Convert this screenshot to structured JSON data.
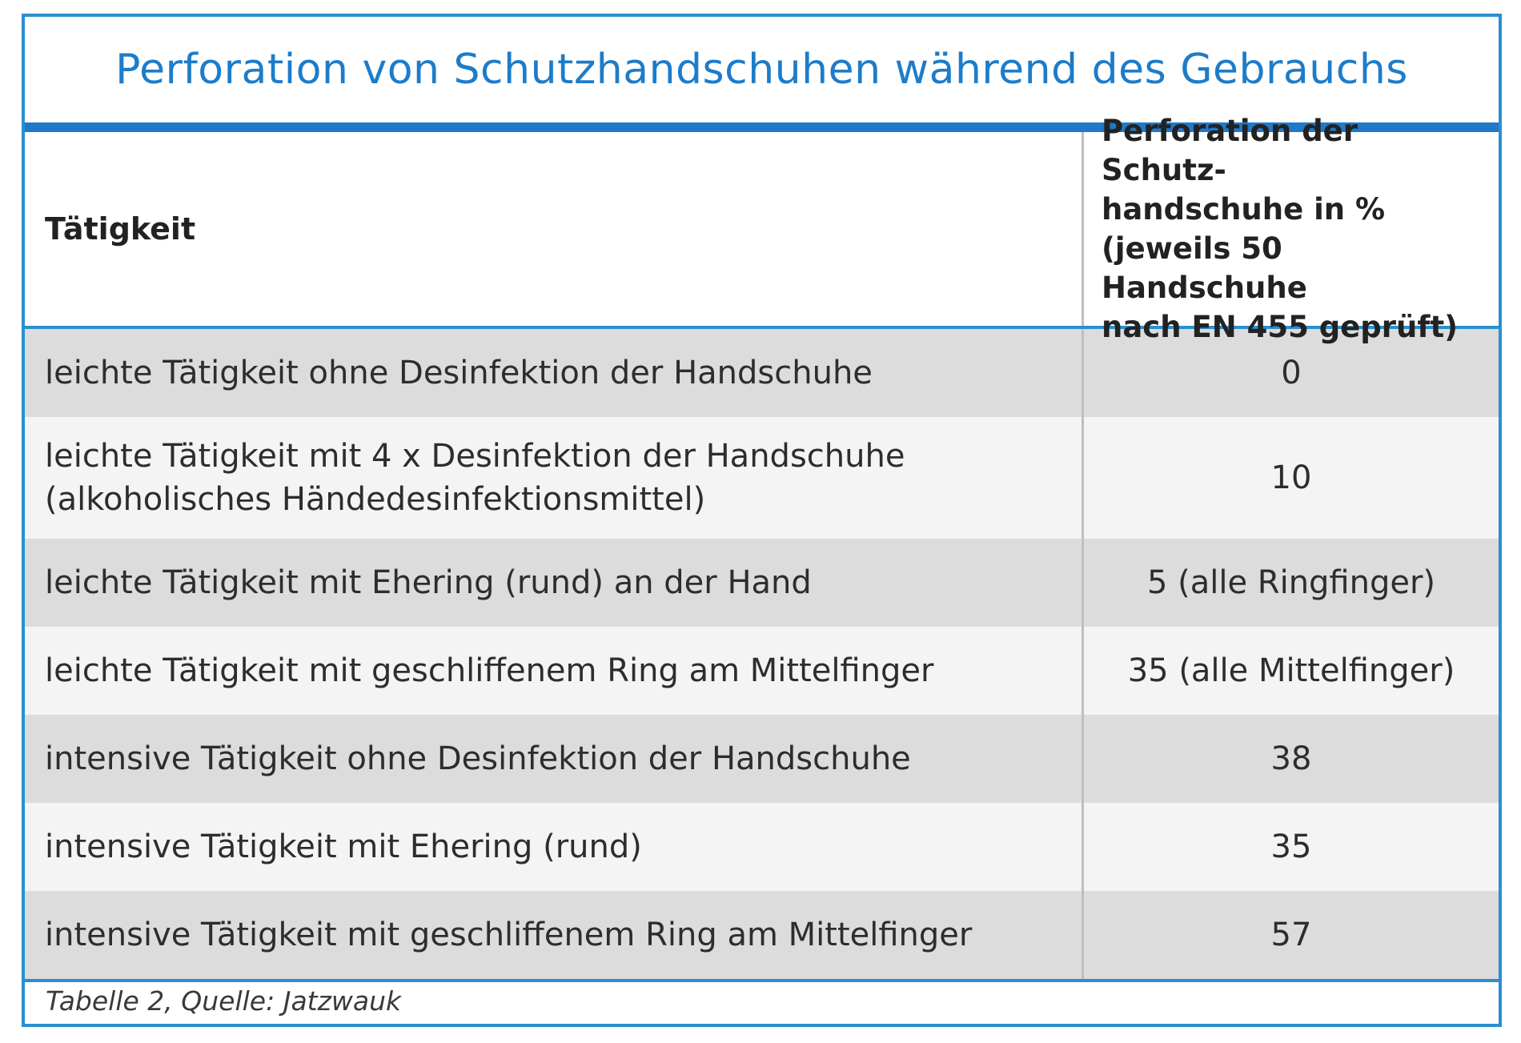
{
  "title": "Perforation von Schutzhandschuhen während des Gebrauchs",
  "table": {
    "headers": [
      "Tätigkeit",
      "Perforation der Schutz-\nhandschuhe in %\n(jeweils 50 Handschuhe\nnach EN 455 geprüft)"
    ],
    "rows": [
      [
        "leichte Tätigkeit ohne Desinfektion der Handschuhe",
        "0"
      ],
      [
        "leichte Tätigkeit mit 4 x Desinfektion der Handschuhe\n(alkoholisches Händedesinfektionsmittel)",
        "10"
      ],
      [
        "leichte Tätigkeit mit Ehering (rund) an der Hand",
        "5 (alle Ringfinger)"
      ],
      [
        "leichte Tätigkeit mit geschliffenem Ring am Mittelfinger",
        "35 (alle Mittelfinger)"
      ],
      [
        "intensive Tätigkeit ohne Desinfektion der Handschuhe",
        "38"
      ],
      [
        "intensive Tätigkeit mit Ehering (rund)",
        "35"
      ],
      [
        "intensive Tätigkeit mit geschliffenem Ring am Mittelfinger",
        "57"
      ]
    ]
  },
  "footer": "Tabelle 2, Quelle: Jatzwauk",
  "colors": {
    "accent": "#1f78c8",
    "title_text": "#1d7cc9",
    "row_gray": "#dcdcdd",
    "row_light": "#f4f4f4"
  }
}
